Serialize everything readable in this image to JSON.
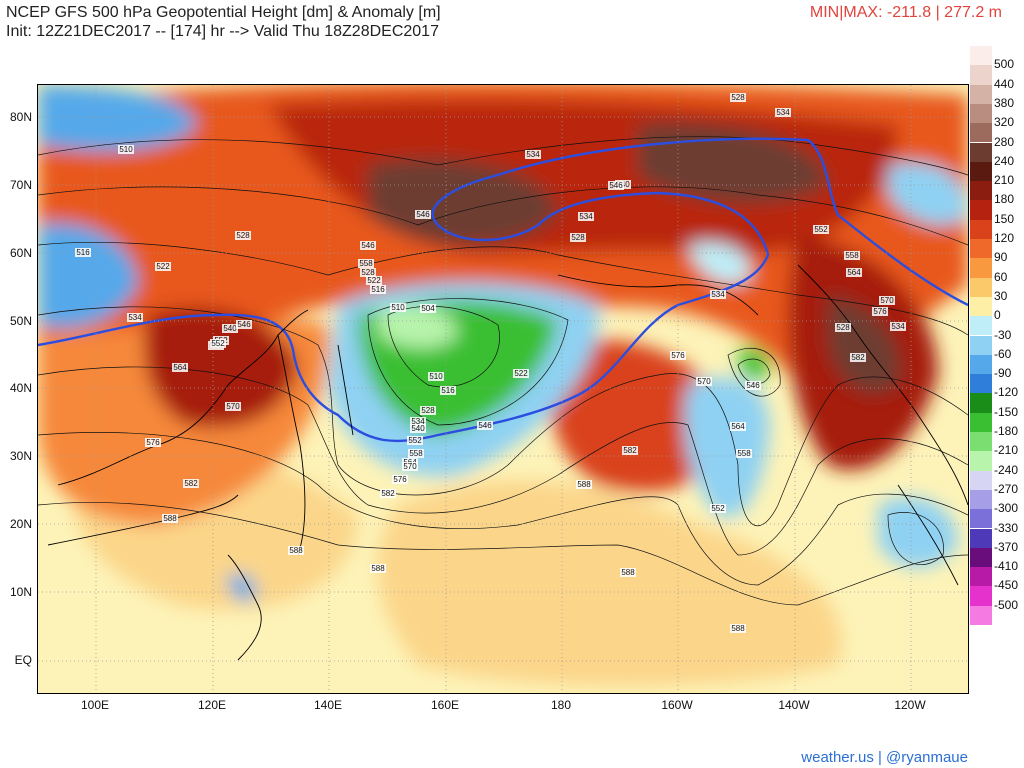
{
  "title": {
    "line1": "NCEP GFS 500 hPa Geopotential Height [dm] & Anomaly [m]",
    "line2": "Init: 12Z21DEC2017 -- [174] hr --> Valid Thu 18Z28DEC2017"
  },
  "minmax": "MIN|MAX: -211.8 | 277.2 m",
  "credit": "weather.us | @ryanmaue",
  "lat_labels": [
    "80N",
    "70N",
    "60N",
    "50N",
    "40N",
    "30N",
    "20N",
    "10N",
    "EQ"
  ],
  "lon_labels": [
    "100E",
    "120E",
    "140E",
    "160E",
    "180",
    "160W",
    "140W",
    "120W"
  ],
  "legend": {
    "labels": [
      "500",
      "440",
      "380",
      "320",
      "280",
      "240",
      "210",
      "180",
      "150",
      "120",
      "90",
      "60",
      "30",
      "0",
      "-30",
      "-60",
      "-90",
      "-120",
      "-150",
      "-180",
      "-210",
      "-240",
      "-270",
      "-300",
      "-330",
      "-370",
      "-410",
      "-450",
      "-500"
    ],
    "colors": [
      "#fbeeea",
      "#ecd3cb",
      "#d4b2a6",
      "#b98d80",
      "#9c6b5e",
      "#6d3c30",
      "#5a1a10",
      "#8b1c10",
      "#b5220f",
      "#d9421b",
      "#ef6a2a",
      "#f89940",
      "#fbc96a",
      "#fdf0a6",
      "#bfeef8",
      "#8fd1f3",
      "#55a9ea",
      "#2f7fda",
      "#1a8c18",
      "#3bbf32",
      "#7adf70",
      "#b8f4ac",
      "#d6d6f4",
      "#a79ee8",
      "#7b6fd9",
      "#4e3ab8",
      "#6a0d7c",
      "#b81aa8",
      "#e632cc",
      "#f57ae2"
    ]
  },
  "contour_labels": [
    "528",
    "534",
    "534",
    "540",
    "546",
    "534",
    "528",
    "510",
    "516",
    "522",
    "528",
    "534",
    "546",
    "552",
    "558",
    "564",
    "570",
    "576",
    "582",
    "588",
    "540",
    "546",
    "552",
    "558",
    "528",
    "522",
    "516",
    "510",
    "504",
    "510",
    "516",
    "522",
    "528",
    "534",
    "540",
    "546",
    "552",
    "558",
    "564",
    "570",
    "576",
    "582",
    "588",
    "588",
    "588",
    "588",
    "588",
    "582",
    "576",
    "570",
    "564",
    "558",
    "552",
    "546",
    "534",
    "546",
    "552",
    "558",
    "564",
    "570",
    "576",
    "582",
    "528",
    "534"
  ]
}
